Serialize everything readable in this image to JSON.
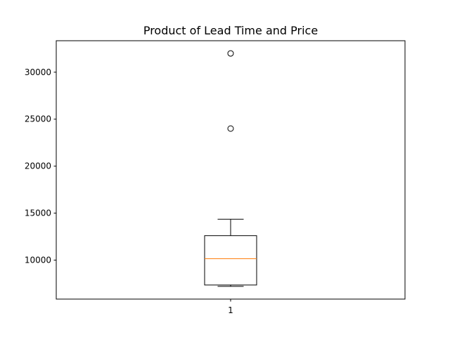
{
  "chart_data": {
    "type": "box",
    "title": "Product of Lead Time and Price",
    "xlabel": "",
    "ylabel": "",
    "categories": [
      "1"
    ],
    "ylim": [
      5850,
      33350
    ],
    "yticks": [
      10000,
      15000,
      20000,
      25000,
      30000
    ],
    "ytick_labels": [
      "10000",
      "15000",
      "20000",
      "25000",
      "30000"
    ],
    "grid": false,
    "boxes": [
      {
        "category": "1",
        "whisker_low": 7200,
        "q1": 7350,
        "median": 10150,
        "q3": 12600,
        "whisker_high": 14350,
        "outliers": [
          24000,
          32000
        ]
      }
    ],
    "colors": {
      "box": "#000000",
      "median": "#ff7f0e",
      "outlier_edge": "#000000"
    }
  }
}
